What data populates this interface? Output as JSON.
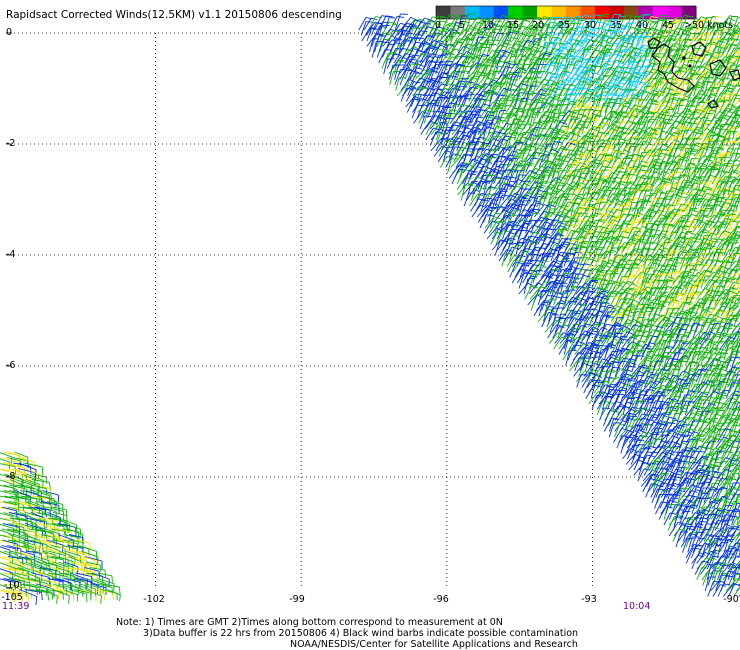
{
  "title": "Rapidsact Corrected Winds(12.5KM) v1.1 20150806 descending",
  "legend": {
    "labels": [
      "0",
      "5",
      "10",
      "15",
      "20",
      "25",
      "30",
      "35",
      "40",
      "45"
    ],
    "units_label": ">50 knots",
    "colors": [
      "#3c3c3c",
      "#7a7a7a",
      "#00b8ff",
      "#0090ff",
      "#0050ff",
      "#00d000",
      "#00a000",
      "#ffe800",
      "#ffc000",
      "#ff9000",
      "#ff5000",
      "#ff0000",
      "#d00000",
      "#8b4513",
      "#b000b0",
      "#ff00ff",
      "#e000e0",
      "#800080"
    ]
  },
  "axes": {
    "lat_labels": [
      "0",
      "-2",
      "-4",
      "-6",
      "-8",
      "-10"
    ],
    "lon_labels": [
      "-105",
      "-102",
      "-99",
      "-96",
      "-93",
      "-90"
    ],
    "time_left": "11:39",
    "time_right": "10:04"
  },
  "map": {
    "lat_range": [
      -10,
      0
    ],
    "lon_range": [
      -105,
      -90
    ],
    "grid": "dotted",
    "coastline": "Galapagos Islands (black outline, top-right)",
    "wind_barb_colors": {
      "blue": "#0030e0",
      "cyan": "#00c8ff",
      "green": "#10b010",
      "yellow": "#f0e000"
    }
  },
  "notes": [
    "Note: 1) Times are GMT 2)Times along bottom correspond to measurement at 0N",
    "3)Data buffer is 22 hrs from 20150806 4) Black wind barbs indicate possible contamination",
    "NOAA/NESDIS/Center for Satellite Applications and Research"
  ]
}
